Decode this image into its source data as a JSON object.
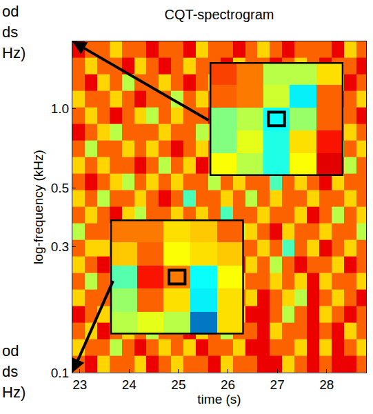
{
  "chart_data": {
    "type": "heatmap",
    "title": "CQT-spectrogram",
    "x_label": "time (s)",
    "y_label": "log-frequency (kHz)",
    "log": "y",
    "xlim": [
      22.85,
      28.8
    ],
    "ylim": [
      0.1,
      1.8
    ],
    "xticks": [
      23,
      24,
      25,
      26,
      27,
      28
    ],
    "yticks": [
      0.1,
      0.3,
      0.5,
      {
        "value": 1,
        "label": "1.0"
      }
    ],
    "zlim": [
      0,
      9
    ],
    "time_edges": [
      22.85,
      23.1,
      23.35,
      23.6,
      23.85,
      24.1,
      24.35,
      24.6,
      24.85,
      25.1,
      25.35,
      25.6,
      25.85,
      26.1,
      26.35,
      26.6,
      26.85,
      27.1,
      27.35,
      27.6,
      27.85,
      28.1,
      28.35,
      28.6,
      28.85
    ],
    "freq_edges": [
      0.1,
      0.1156,
      0.1336,
      0.1544,
      0.1784,
      0.2062,
      0.2382,
      0.2753,
      0.3181,
      0.3676,
      0.4248,
      0.4909,
      0.5673,
      0.6556,
      0.7576,
      0.8755,
      1.0117,
      1.1692,
      1.3511,
      1.5613,
      1.8042
    ],
    "cells": [
      [
        7,
        8,
        6,
        7,
        7,
        6,
        8,
        7,
        6,
        7,
        7,
        8,
        6,
        7,
        7,
        8,
        8,
        6,
        7,
        8,
        7,
        8,
        8,
        7
      ],
      [
        6,
        7,
        7,
        5,
        7,
        8,
        7,
        6,
        7,
        6,
        8,
        7,
        7,
        6,
        8,
        8,
        7,
        7,
        6,
        8,
        6,
        8,
        7,
        6
      ],
      [
        7,
        6,
        8,
        7,
        6,
        7,
        5,
        7,
        7,
        8,
        6,
        7,
        5,
        7,
        7,
        8,
        6,
        7,
        7,
        8,
        7,
        8,
        6,
        7
      ],
      [
        8,
        7,
        6,
        7,
        7,
        6,
        7,
        8,
        6,
        7,
        7,
        6,
        7,
        6,
        8,
        8,
        7,
        5,
        7,
        8,
        6,
        7,
        8,
        7
      ],
      [
        6,
        7,
        7,
        8,
        5,
        7,
        6,
        7,
        7,
        6,
        4,
        7,
        6,
        7,
        6,
        8,
        7,
        6,
        5,
        8,
        7,
        6,
        7,
        8
      ],
      [
        7,
        5,
        7,
        6,
        7,
        8,
        7,
        6,
        5,
        7,
        6,
        7,
        8,
        6,
        7,
        7,
        6,
        7,
        6,
        8,
        6,
        7,
        7,
        6
      ],
      [
        6,
        7,
        8,
        7,
        6,
        7,
        7,
        5,
        7,
        6,
        7,
        6,
        7,
        8,
        6,
        7,
        5,
        7,
        8,
        7,
        7,
        6,
        8,
        7
      ],
      [
        7,
        6,
        6,
        7,
        8,
        6,
        7,
        7,
        6,
        7,
        5,
        7,
        6,
        7,
        7,
        6,
        7,
        4,
        7,
        6,
        8,
        7,
        6,
        7
      ],
      [
        5,
        7,
        7,
        6,
        7,
        7,
        4,
        6,
        7,
        8,
        7,
        6,
        7,
        5,
        6,
        7,
        8,
        6,
        7,
        7,
        6,
        7,
        7,
        5
      ],
      [
        7,
        6,
        7,
        8,
        6,
        5,
        7,
        7,
        6,
        7,
        6,
        7,
        4,
        7,
        7,
        6,
        7,
        7,
        6,
        8,
        7,
        5,
        7,
        6
      ],
      [
        6,
        7,
        5,
        7,
        7,
        6,
        7,
        8,
        7,
        4,
        7,
        7,
        6,
        7,
        5,
        7,
        6,
        7,
        7,
        6,
        7,
        7,
        6,
        7
      ],
      [
        7,
        8,
        7,
        6,
        5,
        7,
        6,
        7,
        6,
        7,
        7,
        5,
        7,
        6,
        7,
        7,
        4,
        7,
        6,
        7,
        8,
        6,
        7,
        7
      ],
      [
        6,
        7,
        6,
        7,
        7,
        8,
        7,
        5,
        7,
        6,
        8,
        7,
        6,
        7,
        6,
        5,
        7,
        7,
        8,
        6,
        7,
        7,
        5,
        7
      ],
      [
        7,
        5,
        7,
        7,
        6,
        7,
        6,
        7,
        8,
        7,
        6,
        7,
        7,
        5,
        7,
        7,
        6,
        8,
        7,
        7,
        6,
        5,
        7,
        6
      ],
      [
        8,
        7,
        6,
        5,
        7,
        7,
        7,
        6,
        7,
        7,
        5,
        6,
        7,
        7,
        8,
        6,
        7,
        7,
        5,
        7,
        7,
        7,
        6,
        7
      ],
      [
        7,
        6,
        7,
        8,
        7,
        6,
        5,
        7,
        6,
        7,
        7,
        8,
        6,
        7,
        7,
        6,
        7,
        6,
        7,
        8,
        6,
        7,
        7,
        8
      ],
      [
        6,
        7,
        7,
        6,
        7,
        8,
        7,
        7,
        5,
        7,
        6,
        7,
        7,
        8,
        6,
        7,
        5,
        7,
        7,
        6,
        7,
        8,
        7,
        6
      ],
      [
        7,
        8,
        6,
        7,
        5,
        7,
        7,
        6,
        7,
        8,
        7,
        6,
        5,
        7,
        7,
        8,
        7,
        6,
        8,
        7,
        7,
        6,
        8,
        7
      ],
      [
        7,
        6,
        7,
        7,
        8,
        6,
        7,
        8,
        7,
        6,
        7,
        7,
        8,
        6,
        7,
        7,
        8,
        7,
        6,
        7,
        8,
        7,
        7,
        8
      ],
      [
        8,
        7,
        7,
        6,
        7,
        7,
        8,
        7,
        7,
        8,
        6,
        7,
        7,
        8,
        7,
        6,
        7,
        8,
        7,
        7,
        7,
        8,
        6,
        7
      ]
    ],
    "insets": [
      {
        "cells": [
          [
            7.3,
            6.8,
            5.0,
            5.0,
            5.9
          ],
          [
            7.0,
            6.8,
            5.2,
            3.2,
            7.0
          ],
          [
            4.5,
            5.0,
            3.4,
            4.7,
            7.0
          ],
          [
            4.5,
            5.4,
            3.6,
            5.9,
            7.7
          ],
          [
            5.6,
            5.0,
            3.6,
            5.6,
            8.1
          ]
        ]
      },
      {
        "cells": [
          [
            6.8,
            6.8,
            5.9,
            6.1,
            7.0
          ],
          [
            6.1,
            7.0,
            5.6,
            5.9,
            6.1
          ],
          [
            4.1,
            7.7,
            6.8,
            3.4,
            5.6
          ],
          [
            4.7,
            7.0,
            5.9,
            3.2,
            5.9
          ],
          [
            5.0,
            5.4,
            5.0,
            1.8,
            5.9
          ]
        ]
      }
    ],
    "side_texts": {
      "upper": [
        "od",
        "ds",
        "Hz)"
      ],
      "lower": [
        "od",
        "ds",
        "Hz)"
      ]
    }
  }
}
